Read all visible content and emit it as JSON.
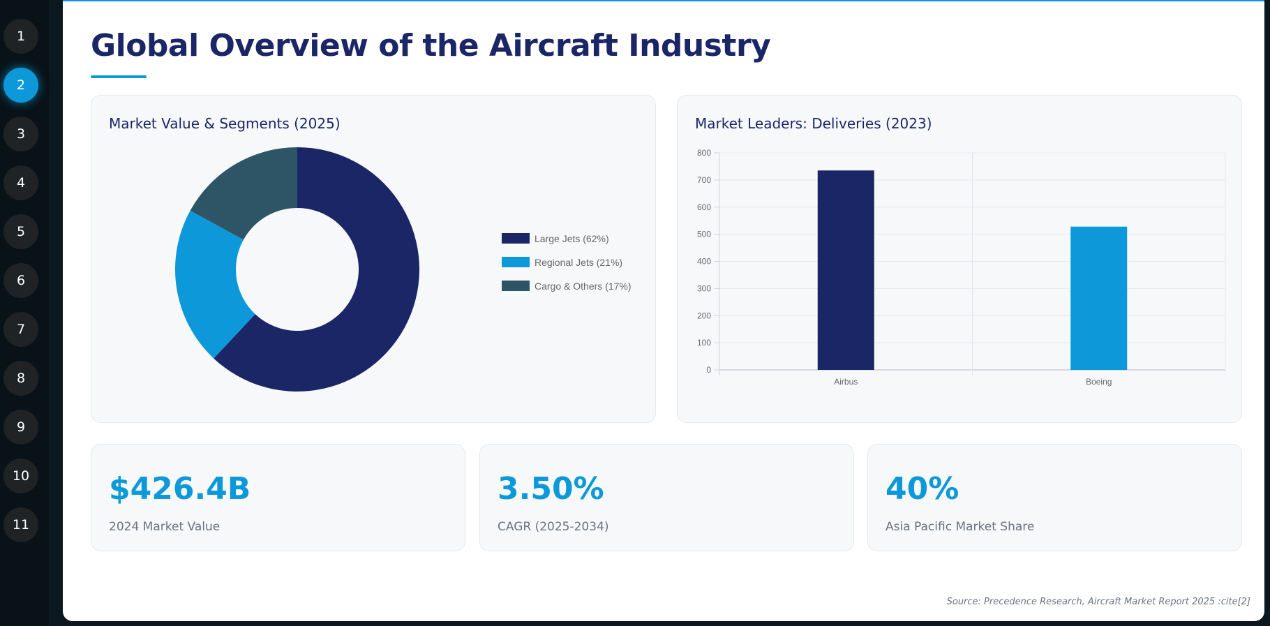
{
  "nav": {
    "items": [
      "1",
      "2",
      "3",
      "4",
      "5",
      "6",
      "7",
      "8",
      "9",
      "10",
      "11"
    ],
    "active_index": 1
  },
  "slide": {
    "title": "Global Overview of the Aircraft Industry",
    "source": "Source: Precedence Research, Aircraft Market Report 2025 :cite[2]"
  },
  "colors": {
    "navy": "#1b2666",
    "accent": "#0d99d9",
    "slate": "#2d5566",
    "card_bg": "#f6f8fa",
    "nav_active": "#0d99d9",
    "nav_inactive": "#1f2326"
  },
  "segments_card": {
    "title": "Market Value & Segments (2025)"
  },
  "deliveries_card": {
    "title": "Market Leaders: Deliveries (2023)"
  },
  "chart_data": [
    {
      "type": "pie",
      "variant": "doughnut",
      "title": "Market Value & Segments (2025)",
      "categories": [
        "Large Jets (62%)",
        "Regional Jets (21%)",
        "Cargo & Others (17%)"
      ],
      "values": [
        62,
        21,
        17
      ],
      "colors": [
        "#1b2666",
        "#0d99d9",
        "#2d5566"
      ],
      "legend": "right"
    },
    {
      "type": "bar",
      "title": "Market Leaders: Deliveries (2023)",
      "categories": [
        "Airbus",
        "Boeing"
      ],
      "values": [
        735,
        528
      ],
      "colors": [
        "#1b2666",
        "#0d99d9"
      ],
      "ylim": [
        0,
        800
      ],
      "yticks": [
        "0",
        "100",
        "200",
        "300",
        "400",
        "500",
        "600",
        "700",
        "800"
      ],
      "grid": true,
      "legend": "none"
    }
  ],
  "stats": [
    {
      "value": "$426.4B",
      "label": "2024 Market Value"
    },
    {
      "value": "3.50%",
      "label": "CAGR (2025-2034)"
    },
    {
      "value": "40%",
      "label": "Asia Pacific Market Share"
    }
  ]
}
